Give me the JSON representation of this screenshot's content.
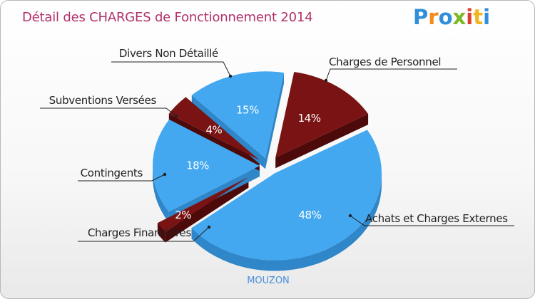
{
  "title": "Détail des CHARGES de Fonctionnement 2014",
  "logo": {
    "text": "Proxiti"
  },
  "commune": "MOUZON",
  "colors": {
    "blue": "#43a8f0",
    "blue_dark": "#2f86c8",
    "red": "#7a1414",
    "red_dark": "#4d0a0a",
    "title": "#b0306a"
  },
  "chart_data": {
    "type": "pie",
    "title": "Détail des CHARGES de Fonctionnement 2014",
    "slices": [
      {
        "label": "Charges de Personnel",
        "percent_label": "14%",
        "value": 14,
        "color": "red"
      },
      {
        "label": "Achats et Charges Externes",
        "percent_label": "48%",
        "value": 48,
        "color": "blue"
      },
      {
        "label": "Charges Financières",
        "percent_label": "2%",
        "value": 2,
        "color": "red"
      },
      {
        "label": "Contingents",
        "percent_label": "18%",
        "value": 18,
        "color": "blue"
      },
      {
        "label": "Subventions Versées",
        "percent_label": "4%",
        "value": 4,
        "color": "red"
      },
      {
        "label": "Divers Non Détaillé",
        "percent_label": "15%",
        "value": 15,
        "color": "blue"
      }
    ]
  }
}
